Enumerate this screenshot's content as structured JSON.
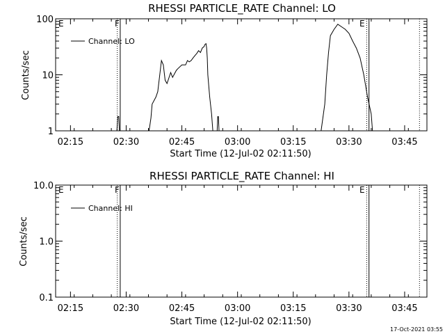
{
  "chart_data": [
    {
      "type": "line",
      "title": "RHESSI PARTICLE_RATE Channel: LO",
      "xlabel": "Start Time (12-Jul-02 02:11:50)",
      "ylabel": "Counts/sec",
      "yscale": "log",
      "ylim": [
        1,
        100
      ],
      "xlim_minutes_after_0211": [
        0,
        100
      ],
      "x_ticks": [
        "02:15",
        "02:30",
        "02:45",
        "03:00",
        "03:15",
        "03:30",
        "03:45"
      ],
      "y_ticks": [
        "1",
        "10",
        "100"
      ],
      "legend": "top-left",
      "grid": false,
      "series": [
        {
          "name": "Channel: LO",
          "x": [
            "02:27:30",
            "02:27:45",
            "02:28:00",
            "02:28:10",
            "02:36:10",
            "02:36:40",
            "02:37:00",
            "02:38:00",
            "02:38:30",
            "02:39:30",
            "02:40:00",
            "02:40:30",
            "02:41:00",
            "02:42:00",
            "02:42:30",
            "02:43:30",
            "02:44:00",
            "02:45:00",
            "02:46:00",
            "02:46:30",
            "02:47:00",
            "02:47:30",
            "02:48:00",
            "02:48:30",
            "02:49:00",
            "02:49:30",
            "02:50:00",
            "02:50:30",
            "02:51:00",
            "02:51:15",
            "02:51:30",
            "02:51:40",
            "02:51:50",
            "02:52:00",
            "02:52:30",
            "02:53:00",
            "02:53:20",
            "02:54:30",
            "02:54:40",
            "02:54:50",
            "02:55:00",
            "03:22:30",
            "03:23:30",
            "03:24:00",
            "03:24:30",
            "03:25:00",
            "03:26:00",
            "03:27:00",
            "03:28:00",
            "03:29:00",
            "03:30:00",
            "03:31:00",
            "03:32:00",
            "03:33:00",
            "03:34:00",
            "03:35:00",
            "03:36:00",
            "03:36:20"
          ],
          "values": [
            1,
            1.8,
            1.8,
            1,
            1,
            1.7,
            3,
            4,
            5,
            18,
            15,
            8,
            7,
            11,
            9,
            12,
            13,
            15,
            15,
            18,
            17,
            18,
            20,
            22,
            24,
            27,
            25,
            30,
            32,
            35,
            36,
            30,
            20,
            10,
            4,
            2,
            1,
            1,
            1.8,
            1.8,
            1,
            1,
            3,
            10,
            25,
            50,
            65,
            80,
            72,
            65,
            55,
            40,
            30,
            20,
            10,
            4,
            2,
            1
          ]
        }
      ],
      "annotations": [
        "E",
        "F",
        "E"
      ]
    },
    {
      "type": "line",
      "title": "RHESSI PARTICLE_RATE Channel: HI",
      "xlabel": "Start Time (12-Jul-02 02:11:50)",
      "ylabel": "Counts/sec",
      "yscale": "log",
      "ylim": [
        0.1,
        10.0
      ],
      "xlim_minutes_after_0211": [
        0,
        100
      ],
      "x_ticks": [
        "02:15",
        "02:30",
        "02:45",
        "03:00",
        "03:15",
        "03:30",
        "03:45"
      ],
      "y_ticks": [
        "0.1",
        "1.0",
        "10.0"
      ],
      "legend": "top-left",
      "grid": false,
      "series": [
        {
          "name": "Channel: HI",
          "x": [],
          "values": []
        }
      ],
      "annotations": [
        "E",
        "F",
        "E"
      ]
    }
  ],
  "footer": {
    "timestamp": "17-Oct-2021 03:55"
  }
}
